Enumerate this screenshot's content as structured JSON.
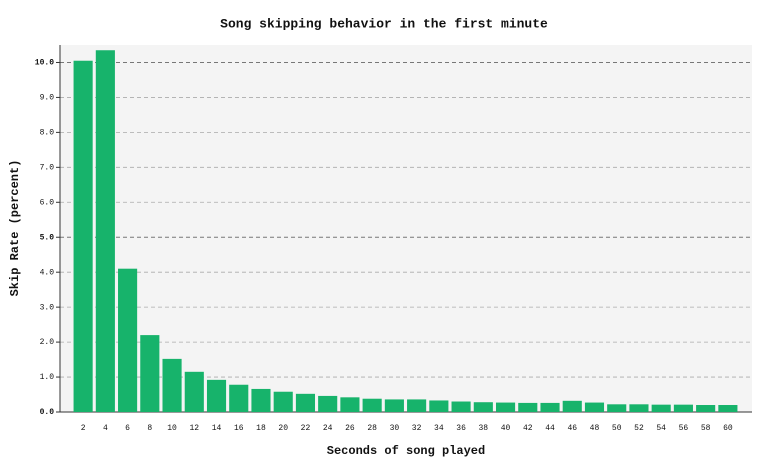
{
  "chart_data": {
    "type": "bar",
    "title": "Song skipping behavior in the first minute",
    "x_label": "Seconds of song played",
    "y_label": "Skip Rate (percent)",
    "categories": [
      "2",
      "4",
      "6",
      "8",
      "10",
      "12",
      "14",
      "16",
      "18",
      "20",
      "22",
      "24",
      "26",
      "28",
      "30",
      "32",
      "34",
      "36",
      "38",
      "40",
      "42",
      "44",
      "46",
      "48",
      "50",
      "52",
      "54",
      "56",
      "58",
      "60"
    ],
    "values": [
      10.05,
      10.35,
      4.1,
      2.2,
      1.52,
      1.15,
      0.92,
      0.78,
      0.66,
      0.58,
      0.52,
      0.46,
      0.42,
      0.38,
      0.36,
      0.36,
      0.33,
      0.3,
      0.28,
      0.27,
      0.26,
      0.26,
      0.32,
      0.27,
      0.22,
      0.22,
      0.21,
      0.21,
      0.2,
      0.2
    ],
    "color": "#17b36b",
    "ylim": [
      0,
      10.5
    ],
    "yticks": [
      {
        "value": 0,
        "label": "0.0"
      },
      {
        "value": 1,
        "label": "1.0"
      },
      {
        "value": 2,
        "label": "2.0"
      },
      {
        "value": 3,
        "label": "3.0"
      },
      {
        "value": 4,
        "label": "4.0"
      },
      {
        "value": 5,
        "label": "5.0"
      },
      {
        "value": 6,
        "label": "6.0"
      },
      {
        "value": 7,
        "label": "7.0"
      },
      {
        "value": 8,
        "label": "8.0"
      },
      {
        "value": 9,
        "label": "9.0"
      },
      {
        "value": 10,
        "label": "10.0"
      }
    ],
    "grid": true
  }
}
